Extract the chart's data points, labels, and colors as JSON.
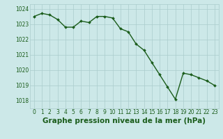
{
  "x": [
    0,
    1,
    2,
    3,
    4,
    5,
    6,
    7,
    8,
    9,
    10,
    11,
    12,
    13,
    14,
    15,
    16,
    17,
    18,
    19,
    20,
    21,
    22,
    23
  ],
  "y": [
    1023.5,
    1023.7,
    1023.6,
    1023.3,
    1022.8,
    1022.8,
    1023.2,
    1023.1,
    1023.5,
    1023.5,
    1023.4,
    1022.7,
    1022.5,
    1021.7,
    1021.3,
    1020.5,
    1019.7,
    1018.9,
    1018.1,
    1019.8,
    1019.7,
    1019.5,
    1019.3,
    1019.0
  ],
  "line_color": "#1a5c1a",
  "marker_color": "#1a5c1a",
  "bg_color": "#cce8e8",
  "grid_color": "#aacccc",
  "xlabel": "Graphe pression niveau de la mer (hPa)",
  "xlabel_color": "#1a5c1a",
  "ylim": [
    1017.5,
    1024.3
  ],
  "yticks": [
    1018,
    1019,
    1020,
    1021,
    1022,
    1023,
    1024
  ],
  "xticks": [
    0,
    1,
    2,
    3,
    4,
    5,
    6,
    7,
    8,
    9,
    10,
    11,
    12,
    13,
    14,
    15,
    16,
    17,
    18,
    19,
    20,
    21,
    22,
    23
  ],
  "tick_color": "#1a5c1a",
  "tick_fontsize": 5.5,
  "xlabel_fontsize": 7.5,
  "marker_size": 2.0,
  "line_width": 1.0
}
